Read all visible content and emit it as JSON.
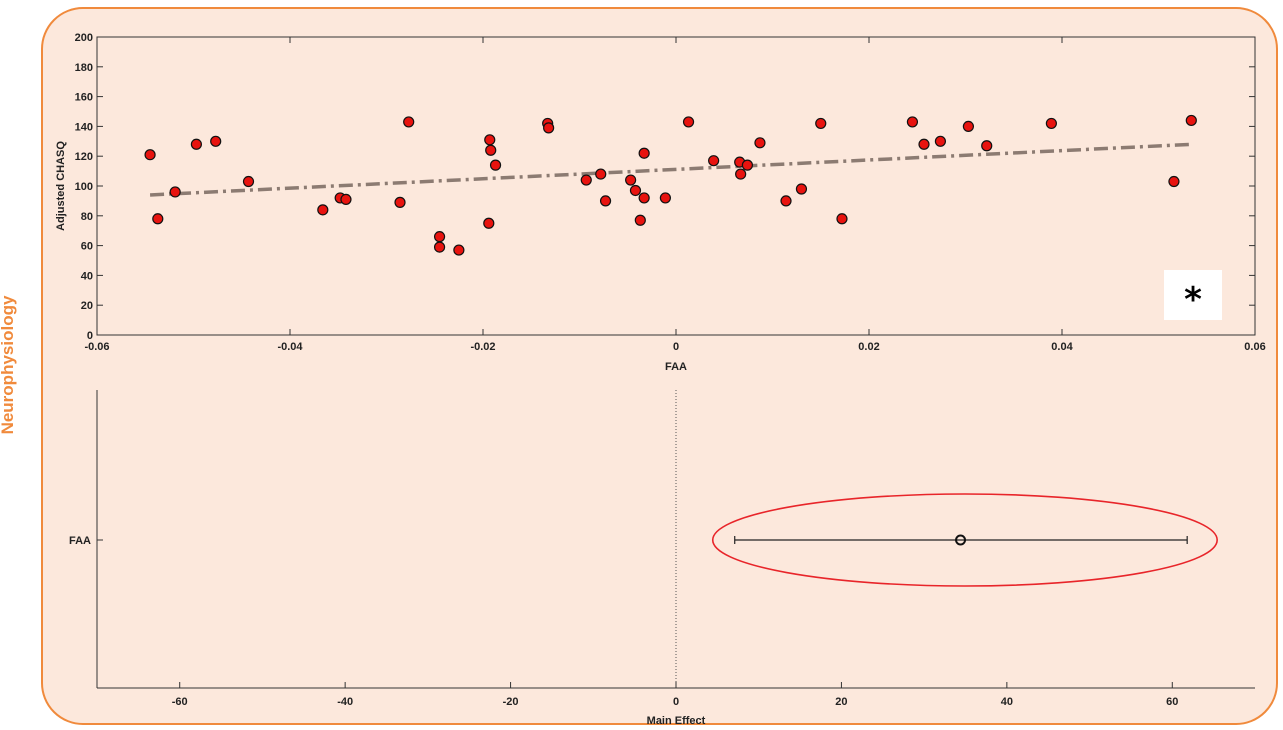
{
  "side_label": "Neurophysiology",
  "colors": {
    "panel_bg": "#fce8dc",
    "panel_border": "#f08a3c",
    "point_fill": "#e8130f",
    "trend_line": "#8c7b72",
    "highlight": "#e8252a"
  },
  "chart_data": [
    {
      "type": "scatter",
      "xlabel": "FAA",
      "ylabel": "Adjusted CHASQ",
      "xlim": [
        -0.06,
        0.06
      ],
      "ylim": [
        0,
        200
      ],
      "xticks": [
        -0.06,
        -0.04,
        -0.02,
        0,
        0.02,
        0.04,
        0.06
      ],
      "xtick_labels": [
        "-0.06",
        "-0.04",
        "-0.02",
        "0",
        "0.02",
        "0.04",
        "0.06"
      ],
      "yticks": [
        0,
        20,
        40,
        60,
        80,
        100,
        120,
        140,
        160,
        180,
        200
      ],
      "ytick_labels": [
        "0",
        "20",
        "40",
        "60",
        "80",
        "100",
        "120",
        "140",
        "160",
        "180",
        "200"
      ],
      "annotation": "*",
      "trend_line": {
        "x": [
          -0.0545,
          0.0535
        ],
        "y": [
          94,
          128
        ]
      },
      "points": [
        [
          -0.0545,
          121
        ],
        [
          -0.0537,
          78
        ],
        [
          -0.0519,
          96
        ],
        [
          -0.0497,
          128
        ],
        [
          -0.0477,
          130
        ],
        [
          -0.0443,
          103
        ],
        [
          -0.0366,
          84
        ],
        [
          -0.0348,
          92
        ],
        [
          -0.0342,
          91
        ],
        [
          -0.0286,
          89
        ],
        [
          -0.0277,
          143
        ],
        [
          -0.0245,
          66
        ],
        [
          -0.0245,
          59
        ],
        [
          -0.0225,
          57
        ],
        [
          -0.0194,
          75
        ],
        [
          -0.0193,
          131
        ],
        [
          -0.0192,
          124
        ],
        [
          -0.0187,
          114
        ],
        [
          -0.0133,
          142
        ],
        [
          -0.0132,
          139
        ],
        [
          -0.0093,
          104
        ],
        [
          -0.0078,
          108
        ],
        [
          -0.0073,
          90
        ],
        [
          -0.0047,
          104
        ],
        [
          -0.0042,
          97
        ],
        [
          -0.0037,
          77
        ],
        [
          -0.0033,
          122
        ],
        [
          -0.0033,
          92
        ],
        [
          -0.0011,
          92
        ],
        [
          0.0013,
          143
        ],
        [
          0.0039,
          117
        ],
        [
          0.0066,
          116
        ],
        [
          0.0067,
          108
        ],
        [
          0.0074,
          114
        ],
        [
          0.0087,
          129
        ],
        [
          0.0114,
          90
        ],
        [
          0.013,
          98
        ],
        [
          0.015,
          142
        ],
        [
          0.0172,
          78
        ],
        [
          0.0245,
          143
        ],
        [
          0.0257,
          128
        ],
        [
          0.0274,
          130
        ],
        [
          0.0303,
          140
        ],
        [
          0.0322,
          127
        ],
        [
          0.0389,
          142
        ],
        [
          0.0516,
          103
        ],
        [
          0.0534,
          144
        ]
      ]
    },
    {
      "type": "scatter",
      "xlabel": "Main Effect",
      "ylabel": "",
      "xlim": [
        -70,
        70
      ],
      "xticks": [
        -60,
        -40,
        -20,
        0,
        20,
        40,
        60
      ],
      "xtick_labels": [
        "-60",
        "-40",
        "-20",
        "0",
        "20",
        "40",
        "60"
      ],
      "categories": [
        "FAA"
      ],
      "estimate": 34.4,
      "ci": [
        7.1,
        61.8
      ],
      "reference_line": 0
    }
  ]
}
